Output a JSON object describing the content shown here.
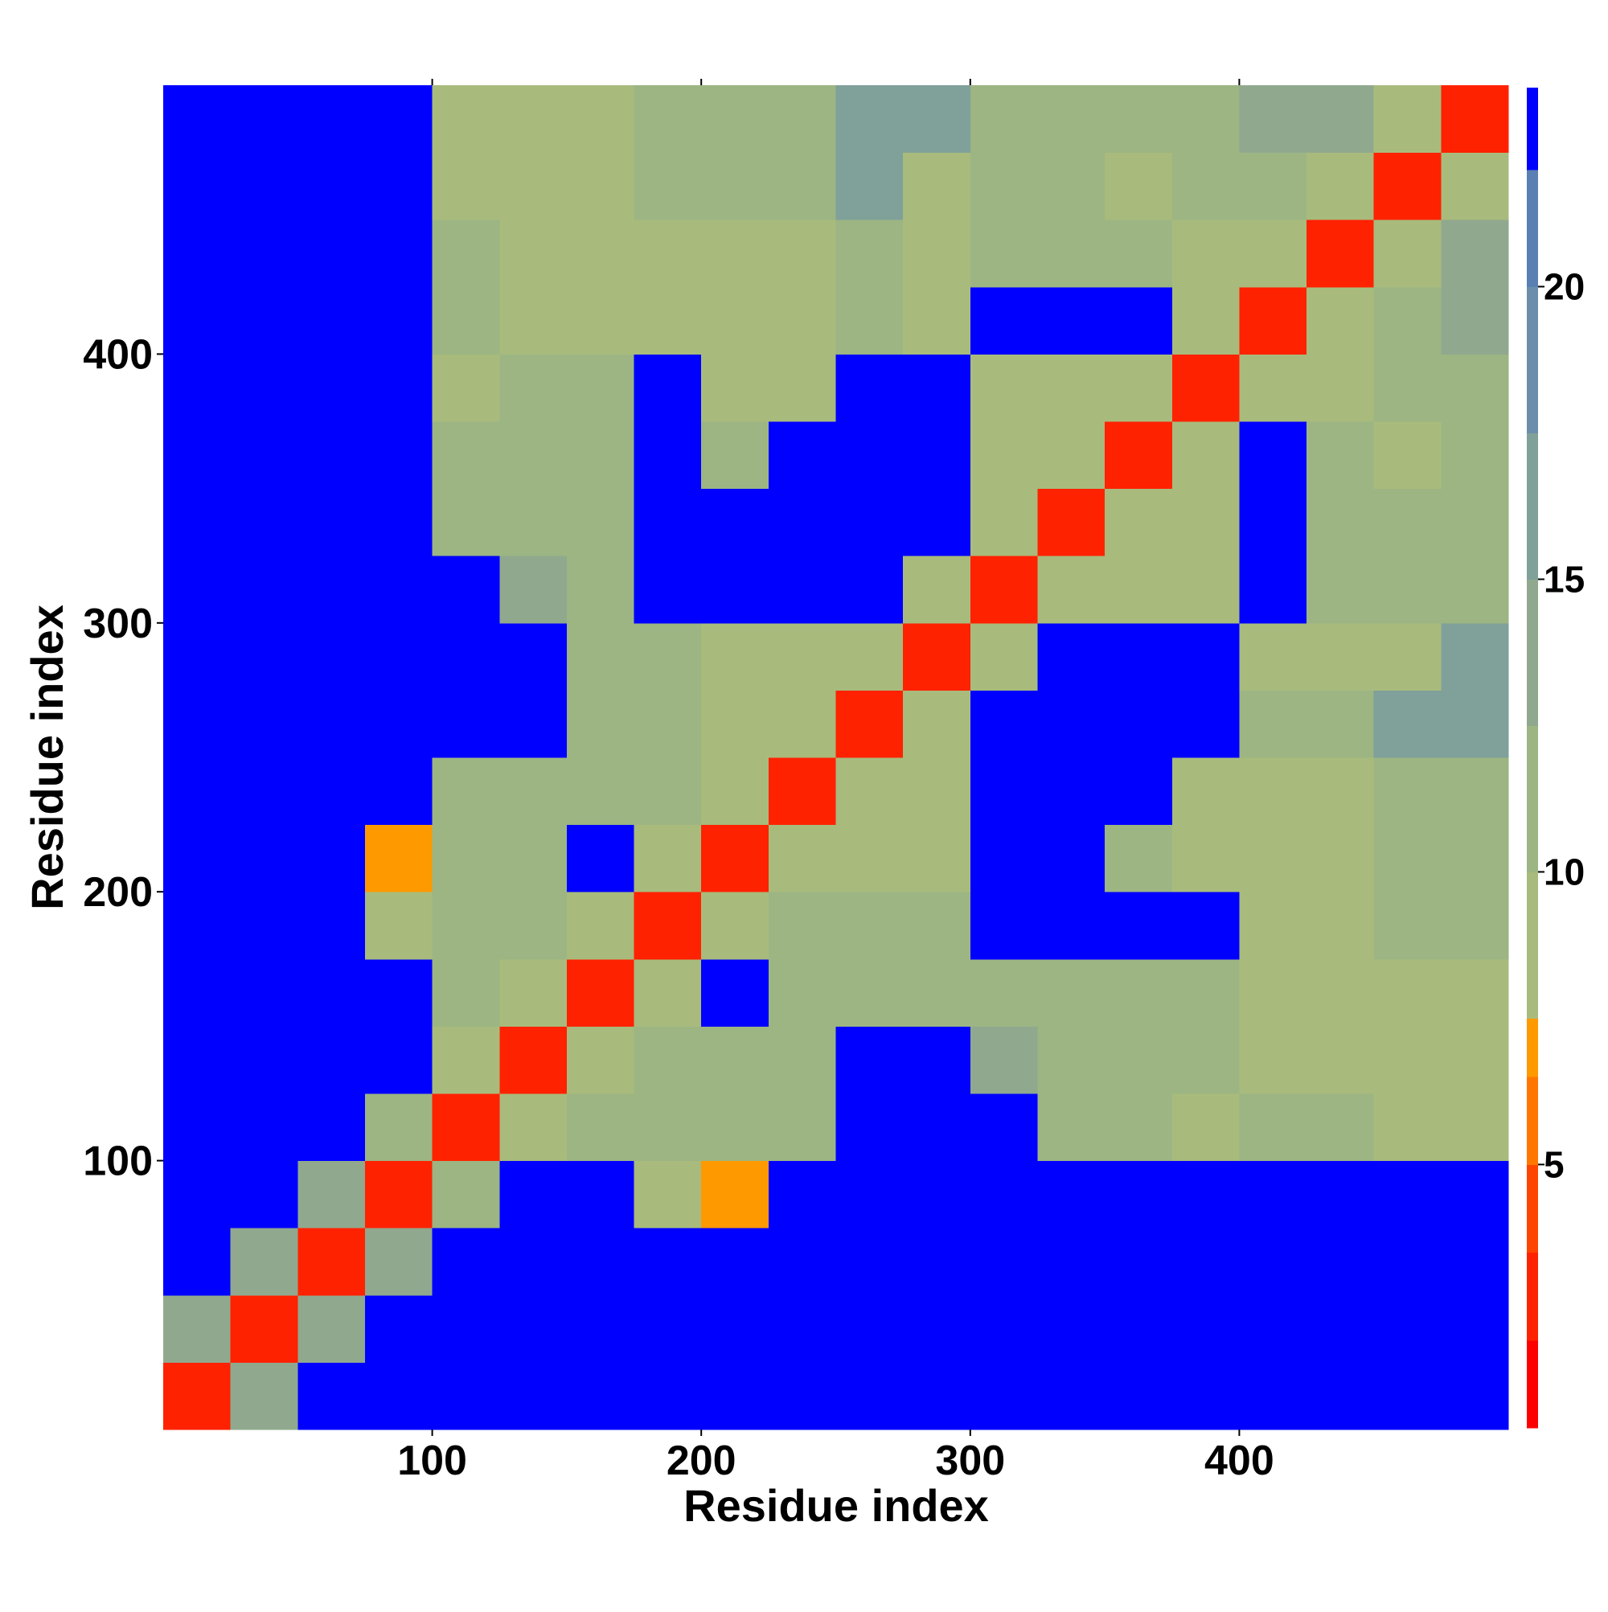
{
  "chart_data": {
    "type": "heatmap",
    "xlabel": "Residue index",
    "ylabel": "Residue index",
    "x": [
      0,
      25,
      50,
      75,
      100,
      125,
      150,
      175,
      200,
      225,
      250,
      275,
      300,
      325,
      350,
      375,
      400,
      425,
      450,
      475,
      500
    ],
    "y": [
      0,
      25,
      50,
      75,
      100,
      125,
      150,
      175,
      200,
      225,
      250,
      275,
      300,
      325,
      350,
      375,
      400,
      425,
      450,
      475,
      500
    ],
    "xlim": [
      0,
      500
    ],
    "ylim": [
      0,
      500
    ],
    "xticks": [
      100,
      200,
      300,
      400
    ],
    "yticks": [
      100,
      200,
      300,
      400
    ],
    "z": [
      [
        2,
        14,
        23,
        23,
        23,
        23,
        23,
        23,
        23,
        23,
        23,
        23,
        23,
        23,
        23,
        23,
        23,
        23,
        23,
        23
      ],
      [
        14,
        2,
        14,
        23,
        23,
        23,
        23,
        23,
        23,
        23,
        23,
        23,
        23,
        23,
        23,
        23,
        23,
        23,
        23,
        23
      ],
      [
        23,
        14,
        2,
        14,
        23,
        23,
        23,
        23,
        23,
        23,
        23,
        23,
        23,
        23,
        23,
        23,
        23,
        23,
        23,
        23
      ],
      [
        23,
        23,
        14,
        2,
        10,
        23,
        23,
        8,
        7,
        23,
        23,
        23,
        23,
        23,
        23,
        23,
        23,
        23,
        23,
        23
      ],
      [
        23,
        23,
        23,
        10,
        2,
        9,
        12,
        12,
        12,
        12,
        23,
        23,
        23,
        10,
        10,
        9,
        10,
        10,
        9,
        9
      ],
      [
        23,
        23,
        23,
        23,
        9,
        2,
        9,
        11,
        12,
        12,
        23,
        23,
        14,
        10,
        10,
        10,
        9,
        9,
        9,
        9
      ],
      [
        23,
        23,
        23,
        23,
        12,
        9,
        2,
        9,
        23,
        11,
        11,
        11,
        12,
        10,
        10,
        10,
        8,
        9,
        9,
        9
      ],
      [
        23,
        23,
        23,
        8,
        12,
        11,
        9,
        2,
        9,
        12,
        12,
        11,
        23,
        23,
        23,
        23,
        9,
        9,
        12,
        12
      ],
      [
        23,
        23,
        23,
        7,
        12,
        12,
        23,
        9,
        2,
        9,
        9,
        8,
        23,
        23,
        11,
        9,
        9,
        9,
        12,
        12
      ],
      [
        23,
        23,
        23,
        23,
        12,
        12,
        11,
        12,
        9,
        2,
        9,
        8,
        23,
        23,
        23,
        9,
        9,
        9,
        12,
        12
      ],
      [
        23,
        23,
        23,
        23,
        23,
        23,
        11,
        12,
        9,
        9,
        2,
        9,
        23,
        23,
        23,
        23,
        10,
        10,
        17,
        17
      ],
      [
        23,
        23,
        23,
        23,
        23,
        23,
        11,
        11,
        8,
        8,
        9,
        2,
        9,
        23,
        23,
        23,
        9,
        8,
        9,
        17
      ],
      [
        23,
        23,
        23,
        23,
        23,
        14,
        12,
        23,
        23,
        23,
        23,
        9,
        2,
        9,
        8,
        9,
        23,
        10,
        10,
        10
      ],
      [
        23,
        23,
        23,
        23,
        10,
        10,
        10,
        23,
        23,
        23,
        23,
        23,
        9,
        2,
        8,
        8,
        23,
        12,
        10,
        10
      ],
      [
        23,
        23,
        23,
        23,
        10,
        10,
        10,
        23,
        11,
        23,
        23,
        23,
        8,
        8,
        2,
        8,
        23,
        12,
        9,
        10
      ],
      [
        23,
        23,
        23,
        23,
        9,
        10,
        10,
        23,
        9,
        9,
        23,
        23,
        9,
        8,
        8,
        2,
        9,
        8,
        10,
        10
      ],
      [
        23,
        23,
        23,
        23,
        10,
        9,
        8,
        9,
        9,
        9,
        10,
        9,
        23,
        23,
        23,
        9,
        2,
        8,
        10,
        14
      ],
      [
        23,
        23,
        23,
        23,
        10,
        9,
        9,
        9,
        9,
        9,
        10,
        8,
        10,
        12,
        12,
        8,
        8,
        2,
        9,
        14
      ],
      [
        23,
        23,
        23,
        23,
        9,
        9,
        9,
        12,
        12,
        12,
        17,
        9,
        10,
        10,
        9,
        10,
        10,
        9,
        2,
        9
      ],
      [
        23,
        23,
        23,
        23,
        9,
        9,
        9,
        12,
        12,
        12,
        17,
        17,
        10,
        10,
        10,
        10,
        14,
        14,
        9,
        2
      ]
    ],
    "levels": [
      0.5,
      2,
      3.5,
      5,
      6.5,
      7.5,
      10,
      12.5,
      15,
      17.5,
      20,
      22,
      23.4
    ],
    "colors": [
      "#ff0000",
      "#ff2200",
      "#ff4400",
      "#ff7700",
      "#ff9900",
      "#a8bb7c",
      "#9cb583",
      "#90a98e",
      "#80a09a",
      "#6b8eaa",
      "#5a80b3",
      "#0000ff"
    ],
    "cticks": [
      5,
      10,
      15,
      20
    ]
  }
}
